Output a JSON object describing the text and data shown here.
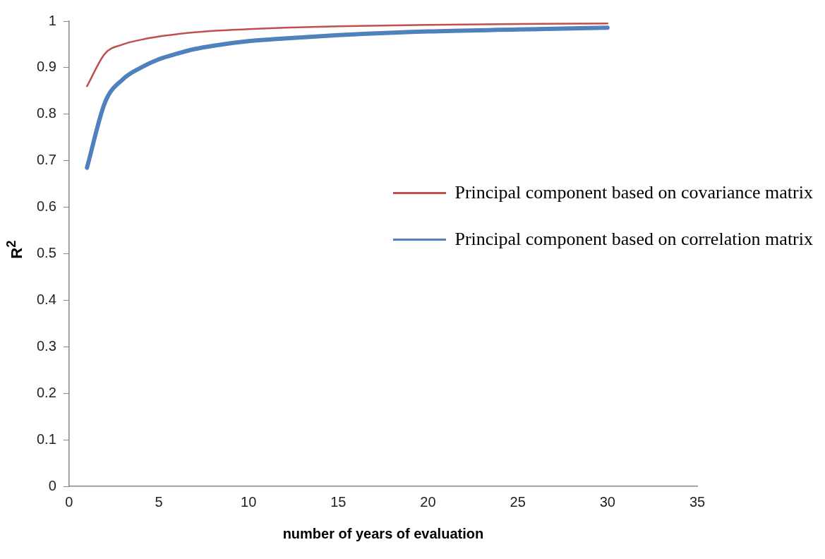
{
  "chart_data": {
    "type": "line",
    "xlabel": "number of years of evaluation",
    "ylabel": "R$^{2}$",
    "xlim": [
      0,
      35
    ],
    "xticks": [
      0,
      5,
      10,
      15,
      20,
      25,
      30,
      35
    ],
    "ylim": [
      0,
      1
    ],
    "yticks": [
      0,
      0.1,
      0.2,
      0.3,
      0.4,
      0.5,
      0.6,
      0.7,
      0.8,
      0.9,
      1
    ],
    "grid": false,
    "legend": "right",
    "marker": "none",
    "x": [
      1,
      2,
      3,
      4,
      5,
      6,
      7,
      8,
      10,
      12,
      15,
      20,
      25,
      30
    ],
    "series": [
      {
        "name": "Principal component based on covariance matrix",
        "color": "#c0504d",
        "values": [
          0.86,
          0.93,
          0.95,
          0.96,
          0.967,
          0.972,
          0.976,
          0.979,
          0.983,
          0.986,
          0.989,
          0.992,
          0.994,
          0.995
        ]
      },
      {
        "name": "Principal component based on correlation matrix",
        "color": "#4f81bd",
        "values": [
          0.685,
          0.825,
          0.875,
          0.9,
          0.918,
          0.93,
          0.94,
          0.947,
          0.957,
          0.963,
          0.97,
          0.978,
          0.982,
          0.986
        ]
      }
    ]
  }
}
